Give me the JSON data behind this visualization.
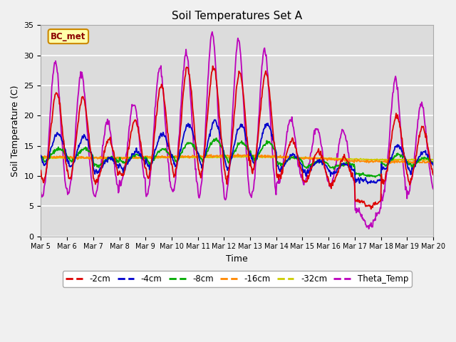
{
  "title": "Soil Temperatures Set A",
  "xlabel": "Time",
  "ylabel": "Soil Temperature (C)",
  "annotation": "BC_met",
  "ylim": [
    0,
    35
  ],
  "yticks": [
    0,
    5,
    10,
    15,
    20,
    25,
    30,
    35
  ],
  "xtick_labels": [
    "Mar 5",
    "Mar 6",
    "Mar 7",
    "Mar 8",
    "Mar 9",
    "Mar 10",
    "Mar 11",
    "Mar 12",
    "Mar 13",
    "Mar 14",
    "Mar 15",
    "Mar 16",
    "Mar 17",
    "Mar 18",
    "Mar 19",
    "Mar 20"
  ],
  "series_colors": {
    "-2cm": "#dd0000",
    "-4cm": "#0000cc",
    "-8cm": "#00aa00",
    "-16cm": "#ff8800",
    "-32cm": "#cccc00",
    "Theta_Temp": "#bb00bb"
  },
  "bg_color": "#dcdcdc",
  "plot_bg_color": "#dcdcdc",
  "grid_color": "#ffffff",
  "fig_bg": "#f0f0f0"
}
